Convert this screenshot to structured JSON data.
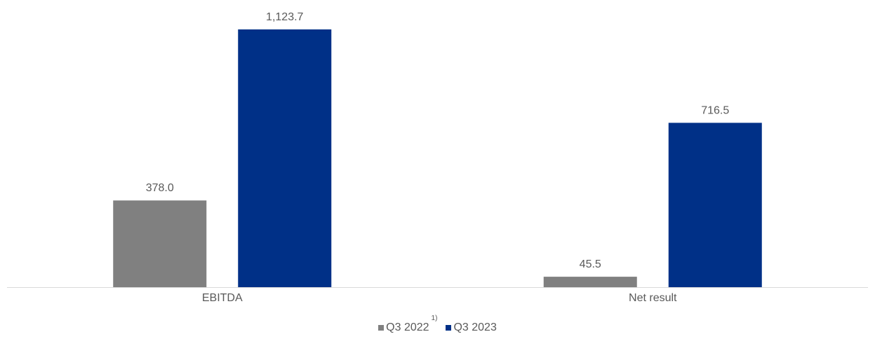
{
  "chart_data": {
    "type": "bar",
    "categories": [
      "EBITDA",
      "Net result"
    ],
    "series": [
      {
        "name": "Q3 2022",
        "footnote": "1)",
        "values": [
          378.0,
          45.5
        ],
        "labels": [
          "378.0",
          "45.5"
        ],
        "color": "#808080"
      },
      {
        "name": "Q3 2023",
        "values": [
          1123.7,
          716.5
        ],
        "labels": [
          "1,123.7",
          "716.5"
        ],
        "color": "#003087"
      }
    ],
    "title": "",
    "xlabel": "",
    "ylabel": "",
    "ylim": [
      0,
      1123.7
    ],
    "grid": false,
    "legend_position": "bottom"
  }
}
